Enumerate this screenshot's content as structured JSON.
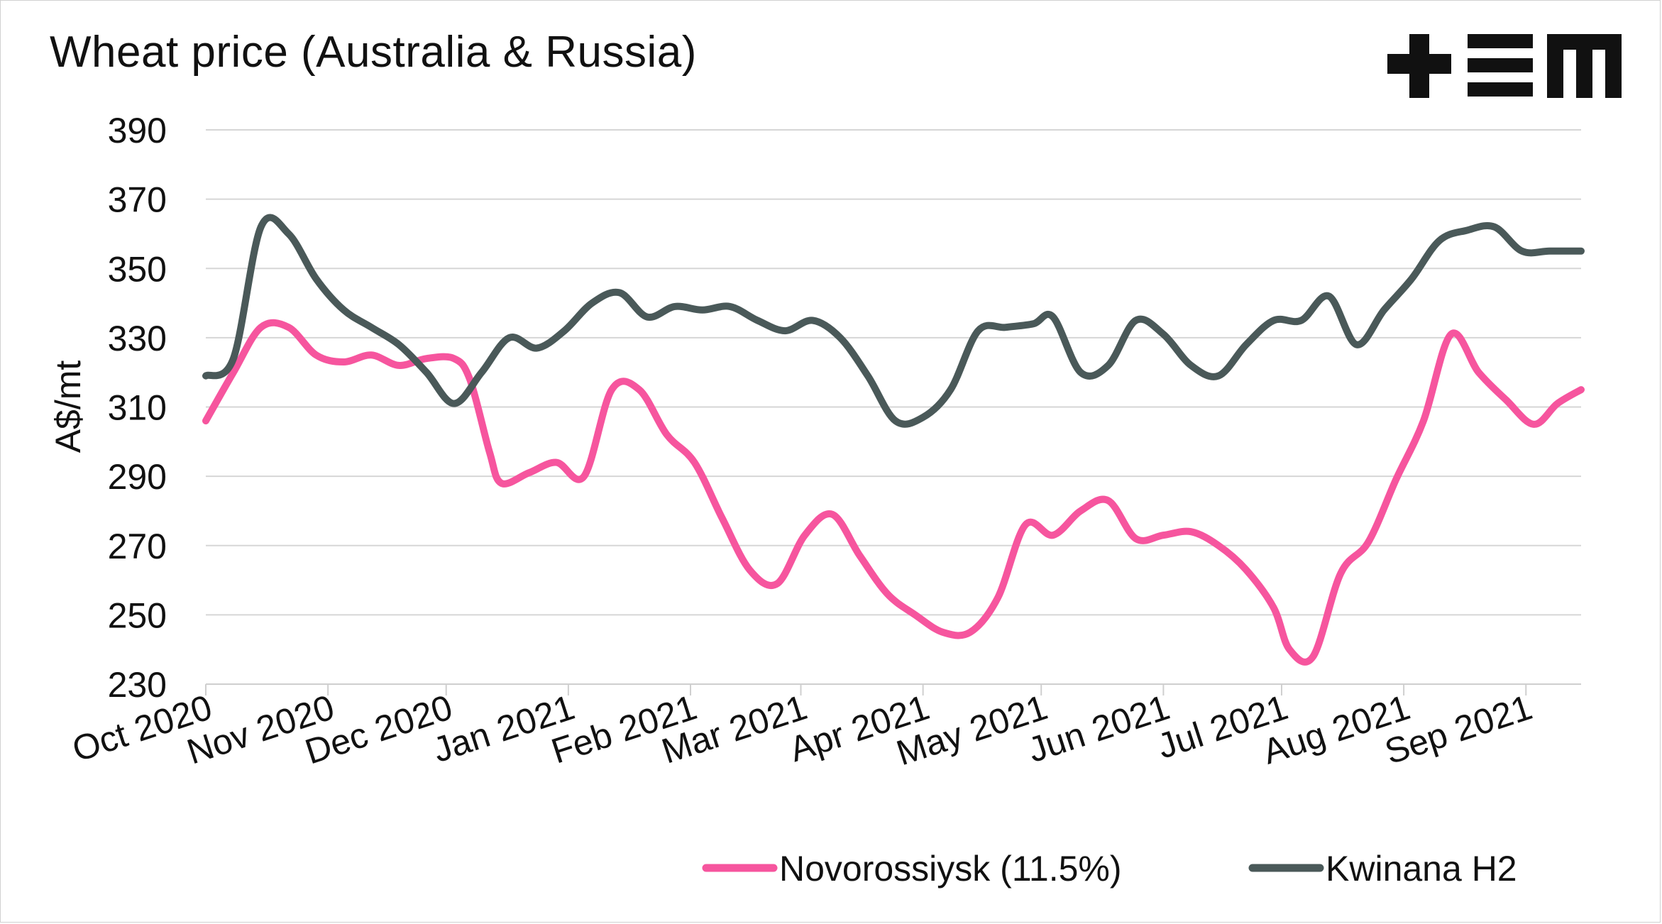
{
  "title": "Wheat price (Australia & Russia)",
  "logo": {
    "name": "tem-logo",
    "color": "#111111"
  },
  "chart_data": {
    "type": "line",
    "title": "Wheat price (Australia & Russia)",
    "xlabel": "",
    "ylabel": "A$/mt",
    "ylim": [
      230,
      390
    ],
    "yticks": [
      230,
      250,
      270,
      290,
      310,
      330,
      350,
      370,
      390
    ],
    "grid": true,
    "legend_position": "bottom-right",
    "x_range": [
      "2020-10-01",
      "2021-09-15"
    ],
    "x_tick_labels": [
      {
        "date": "2020-10-01",
        "label": "Oct 2020"
      },
      {
        "date": "2020-11-01",
        "label": "Nov 2020"
      },
      {
        "date": "2020-12-01",
        "label": "Dec 2020"
      },
      {
        "date": "2021-01-01",
        "label": "Jan 2021"
      },
      {
        "date": "2021-02-01",
        "label": "Feb 2021"
      },
      {
        "date": "2021-03-01",
        "label": "Mar 2021"
      },
      {
        "date": "2021-04-01",
        "label": "Apr 2021"
      },
      {
        "date": "2021-05-01",
        "label": "May 2021"
      },
      {
        "date": "2021-06-01",
        "label": "Jun 2021"
      },
      {
        "date": "2021-07-01",
        "label": "Jul 2021"
      },
      {
        "date": "2021-08-01",
        "label": "Aug 2021"
      },
      {
        "date": "2021-09-01",
        "label": "Sep 2021"
      }
    ],
    "series": [
      {
        "name": "Novorossiysk (11.5%)",
        "color": "#f6559e",
        "points": [
          [
            "2020-10-01",
            306
          ],
          [
            "2020-10-08",
            320
          ],
          [
            "2020-10-15",
            333
          ],
          [
            "2020-10-22",
            333
          ],
          [
            "2020-10-29",
            325
          ],
          [
            "2020-11-05",
            323
          ],
          [
            "2020-11-12",
            325
          ],
          [
            "2020-11-19",
            322
          ],
          [
            "2020-11-26",
            324
          ],
          [
            "2020-12-03",
            324
          ],
          [
            "2020-12-07",
            318
          ],
          [
            "2020-12-12",
            297
          ],
          [
            "2020-12-15",
            288
          ],
          [
            "2020-12-22",
            291
          ],
          [
            "2020-12-29",
            294
          ],
          [
            "2021-01-05",
            290
          ],
          [
            "2021-01-12",
            315
          ],
          [
            "2021-01-19",
            315
          ],
          [
            "2021-01-26",
            302
          ],
          [
            "2021-02-02",
            294
          ],
          [
            "2021-02-09",
            278
          ],
          [
            "2021-02-16",
            263
          ],
          [
            "2021-02-23",
            259
          ],
          [
            "2021-03-02",
            273
          ],
          [
            "2021-03-09",
            279
          ],
          [
            "2021-03-16",
            267
          ],
          [
            "2021-03-23",
            256
          ],
          [
            "2021-03-30",
            250
          ],
          [
            "2021-04-06",
            245
          ],
          [
            "2021-04-13",
            245
          ],
          [
            "2021-04-20",
            255
          ],
          [
            "2021-04-27",
            276
          ],
          [
            "2021-05-04",
            273
          ],
          [
            "2021-05-11",
            280
          ],
          [
            "2021-05-18",
            283
          ],
          [
            "2021-05-25",
            272
          ],
          [
            "2021-06-01",
            273
          ],
          [
            "2021-06-08",
            274
          ],
          [
            "2021-06-15",
            270
          ],
          [
            "2021-06-22",
            263
          ],
          [
            "2021-06-29",
            252
          ],
          [
            "2021-07-03",
            240
          ],
          [
            "2021-07-09",
            238
          ],
          [
            "2021-07-16",
            262
          ],
          [
            "2021-07-23",
            271
          ],
          [
            "2021-07-30",
            289
          ],
          [
            "2021-08-06",
            306
          ],
          [
            "2021-08-13",
            331
          ],
          [
            "2021-08-20",
            320
          ],
          [
            "2021-08-27",
            312
          ],
          [
            "2021-09-03",
            305
          ],
          [
            "2021-09-09",
            311
          ],
          [
            "2021-09-15",
            315
          ]
        ]
      },
      {
        "name": "Kwinana H2",
        "color": "#4a5959",
        "points": [
          [
            "2020-10-01",
            319
          ],
          [
            "2020-10-08",
            324
          ],
          [
            "2020-10-15",
            362
          ],
          [
            "2020-10-22",
            360
          ],
          [
            "2020-10-29",
            347
          ],
          [
            "2020-11-05",
            338
          ],
          [
            "2020-11-12",
            333
          ],
          [
            "2020-11-19",
            328
          ],
          [
            "2020-11-26",
            320
          ],
          [
            "2020-12-03",
            311
          ],
          [
            "2020-12-10",
            320
          ],
          [
            "2020-12-17",
            330
          ],
          [
            "2020-12-24",
            327
          ],
          [
            "2020-12-31",
            332
          ],
          [
            "2021-01-07",
            340
          ],
          [
            "2021-01-14",
            343
          ],
          [
            "2021-01-21",
            336
          ],
          [
            "2021-01-28",
            339
          ],
          [
            "2021-02-04",
            338
          ],
          [
            "2021-02-11",
            339
          ],
          [
            "2021-02-18",
            335
          ],
          [
            "2021-02-25",
            332
          ],
          [
            "2021-03-04",
            335
          ],
          [
            "2021-03-11",
            330
          ],
          [
            "2021-03-18",
            319
          ],
          [
            "2021-03-25",
            306
          ],
          [
            "2021-04-01",
            307
          ],
          [
            "2021-04-08",
            315
          ],
          [
            "2021-04-15",
            332
          ],
          [
            "2021-04-22",
            333
          ],
          [
            "2021-04-29",
            334
          ],
          [
            "2021-05-04",
            336
          ],
          [
            "2021-05-11",
            320
          ],
          [
            "2021-05-18",
            322
          ],
          [
            "2021-05-25",
            335
          ],
          [
            "2021-06-01",
            331
          ],
          [
            "2021-06-08",
            322
          ],
          [
            "2021-06-15",
            319
          ],
          [
            "2021-06-22",
            328
          ],
          [
            "2021-06-29",
            335
          ],
          [
            "2021-07-06",
            335
          ],
          [
            "2021-07-13",
            342
          ],
          [
            "2021-07-20",
            328
          ],
          [
            "2021-07-27",
            338
          ],
          [
            "2021-08-03",
            347
          ],
          [
            "2021-08-10",
            358
          ],
          [
            "2021-08-17",
            361
          ],
          [
            "2021-08-24",
            362
          ],
          [
            "2021-08-31",
            355
          ],
          [
            "2021-09-07",
            355
          ],
          [
            "2021-09-15",
            355
          ]
        ]
      }
    ]
  }
}
